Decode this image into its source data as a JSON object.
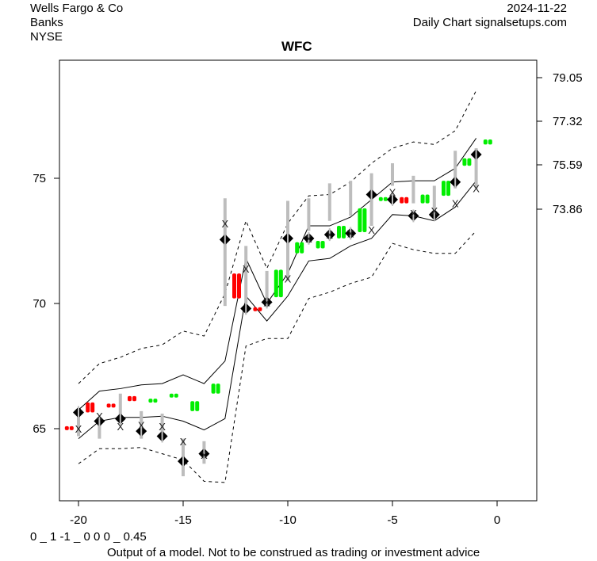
{
  "header": {
    "company": "Wells Fargo & Co",
    "sector": "Banks",
    "exchange": "NYSE",
    "date": "2024-11-22",
    "source": "Daily Chart signalsetups.com"
  },
  "footer": {
    "model_values": "0 _ 1 -1 _ 0 0 0 _ 0.45",
    "disclaimer": "Output of a model. Not to be construed as trading or investment advice"
  },
  "colors": {
    "up": "#00ee00",
    "down": "#ff0000",
    "range": "#bdbdbd",
    "marker": "#000000"
  },
  "chart_data": {
    "type": "line",
    "title": "WFC",
    "xlim": [
      -21,
      2
    ],
    "ylim": [
      61.8,
      80.8
    ],
    "x_ticks": [
      -20,
      -15,
      -10,
      -5,
      0
    ],
    "y_ticks_left": [
      65,
      70,
      75
    ],
    "y_ticks_right": [
      79.05,
      77.32,
      75.59,
      73.86
    ],
    "grid": false,
    "days": [
      -20,
      -19,
      -18,
      -17,
      -16,
      -15,
      -14,
      -13,
      -12,
      -11,
      -10,
      -9,
      -8,
      -7,
      -6,
      -5,
      -4,
      -3,
      -2,
      -1
    ],
    "bands": {
      "upper_outer": [
        66.8,
        67.6,
        67.85,
        68.2,
        68.35,
        68.9,
        68.7,
        70.4,
        73.3,
        71.4,
        73.2,
        74.3,
        74.35,
        74.85,
        75.6,
        76.2,
        76.45,
        76.35,
        76.9,
        78.5
      ],
      "upper_inner": [
        65.75,
        66.5,
        66.6,
        66.75,
        66.8,
        67.15,
        66.8,
        67.7,
        71.8,
        70.0,
        71.2,
        73.1,
        73.1,
        73.45,
        74.15,
        74.85,
        74.9,
        74.9,
        75.4,
        76.6
      ],
      "lower_inner": [
        64.6,
        65.3,
        65.45,
        65.45,
        65.5,
        65.3,
        64.95,
        65.4,
        70.3,
        69.3,
        70.3,
        71.7,
        71.8,
        72.3,
        72.6,
        73.55,
        73.5,
        73.3,
        73.85,
        74.9
      ],
      "lower_outer": [
        63.6,
        64.2,
        64.2,
        64.25,
        64.0,
        63.75,
        62.9,
        62.85,
        68.3,
        68.6,
        68.6,
        70.2,
        70.45,
        70.8,
        71.05,
        72.4,
        72.15,
        72.0,
        72.0,
        72.9
      ]
    },
    "candles": [
      {
        "x": -20.5,
        "top": 65.1,
        "bottom": 65.0,
        "dir": "down"
      },
      {
        "x": -19.5,
        "top": 66.05,
        "bottom": 65.65,
        "dir": "down"
      },
      {
        "x": -18.5,
        "top": 66.0,
        "bottom": 65.85,
        "dir": "down"
      },
      {
        "x": -17.5,
        "top": 66.3,
        "bottom": 66.1,
        "dir": "down"
      },
      {
        "x": -16.5,
        "top": 66.2,
        "bottom": 66.1,
        "dir": "up"
      },
      {
        "x": -15.5,
        "top": 66.4,
        "bottom": 66.3,
        "dir": "up"
      },
      {
        "x": -14.5,
        "top": 66.1,
        "bottom": 65.7,
        "dir": "up"
      },
      {
        "x": -13.5,
        "top": 66.8,
        "bottom": 66.4,
        "dir": "up"
      },
      {
        "x": -12.5,
        "top": 71.2,
        "bottom": 70.2,
        "dir": "down"
      },
      {
        "x": -11.5,
        "top": 69.85,
        "bottom": 69.7,
        "dir": "down"
      },
      {
        "x": -10.5,
        "top": 71.35,
        "bottom": 70.25,
        "dir": "up"
      },
      {
        "x": -9.5,
        "top": 72.45,
        "bottom": 72.0,
        "dir": "up"
      },
      {
        "x": -8.5,
        "top": 72.5,
        "bottom": 72.2,
        "dir": "up"
      },
      {
        "x": -7.5,
        "top": 73.1,
        "bottom": 72.6,
        "dir": "up"
      },
      {
        "x": -6.5,
        "top": 73.8,
        "bottom": 72.85,
        "dir": "up"
      },
      {
        "x": -5.5,
        "top": 74.25,
        "bottom": 74.1,
        "dir": "up"
      },
      {
        "x": -4.5,
        "top": 74.25,
        "bottom": 74.0,
        "dir": "down"
      },
      {
        "x": -3.5,
        "top": 74.35,
        "bottom": 74.0,
        "dir": "up"
      },
      {
        "x": -2.5,
        "top": 74.9,
        "bottom": 74.3,
        "dir": "up"
      },
      {
        "x": -1.5,
        "top": 75.8,
        "bottom": 75.5,
        "dir": "up"
      },
      {
        "x": -0.5,
        "top": 76.55,
        "bottom": 76.35,
        "dir": "up"
      }
    ],
    "ranges": [
      [
        65.7,
        64.7
      ],
      [
        65.4,
        64.6
      ],
      [
        66.4,
        65.2
      ],
      [
        65.7,
        64.6
      ],
      [
        65.6,
        64.6
      ],
      [
        64.6,
        63.1
      ],
      [
        64.5,
        63.6
      ],
      [
        74.2,
        69.9
      ],
      [
        72.3,
        70.0
      ],
      [
        71.3,
        70.2
      ],
      [
        74.1,
        70.9
      ],
      [
        74.2,
        72.9
      ],
      [
        74.8,
        73.3
      ],
      [
        74.9,
        73.5
      ],
      [
        75.2,
        73.1
      ],
      [
        75.6,
        74.7
      ],
      [
        75.1,
        74.0
      ],
      [
        74.7,
        73.4
      ],
      [
        76.1,
        74.6
      ],
      [
        76.2,
        74.6
      ]
    ],
    "diamonds": [
      65.65,
      65.3,
      65.4,
      64.9,
      64.7,
      63.7,
      64.0,
      72.55,
      69.8,
      70.05,
      72.6,
      72.6,
      72.75,
      72.8,
      74.35,
      74.15,
      73.5,
      73.55,
      74.85,
      75.95
    ],
    "x_marks": [
      65.0,
      65.5,
      65.1,
      65.15,
      65.1,
      64.5,
      63.95,
      73.2,
      71.4,
      70.05,
      71.0,
      72.6,
      72.75,
      72.8,
      72.95,
      74.45,
      73.6,
      73.7,
      74.0,
      74.6
    ]
  }
}
